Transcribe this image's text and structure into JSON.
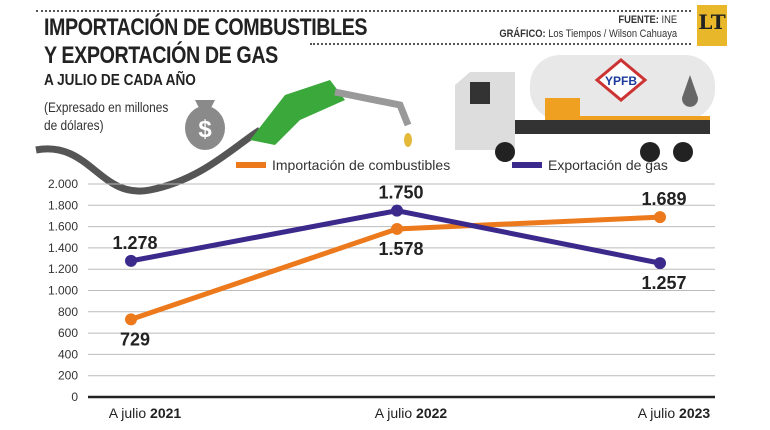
{
  "header": {
    "title_line1": "IMPORTACIÓN DE COMBUSTIBLES",
    "title_line2": "Y EXPORTACIÓN DE GAS",
    "subtitle": "A JULIO DE CADA AÑO",
    "unit_line1": "(Expresado en millones",
    "unit_line2": "de dólares)",
    "source_label": "FUENTE:",
    "source_value": "INE",
    "graphic_label": "GRÁFICO:",
    "graphic_value": "Los Tiempos / Wilson Cahuaya",
    "logo_text": "LT",
    "truck_logo": "YPFB"
  },
  "colors": {
    "import": "#ec7a1c",
    "export": "#3b2a8c",
    "grid": "#bbbbbb"
  },
  "chart_data": {
    "type": "line",
    "title": "Importación de combustibles y exportación de gas",
    "xlabel": "",
    "ylabel": "Millones de dólares",
    "categories": [
      "2021",
      "2022",
      "2023"
    ],
    "category_prefix": "A julio",
    "ylim": [
      0,
      2000
    ],
    "yticks": [
      0,
      200,
      400,
      600,
      800,
      1000,
      1200,
      1400,
      1600,
      1800,
      2000
    ],
    "ytick_labels": [
      "0",
      "200",
      "400",
      "600",
      "800",
      "1.000",
      "1.200",
      "1.400",
      "1.600",
      "1.800",
      "2.000"
    ],
    "grid": true,
    "legend_position": "top",
    "series": [
      {
        "name": "Importación de combustibles",
        "values": [
          729,
          1578,
          1689
        ],
        "labels": [
          "729",
          "1.578",
          "1.689"
        ]
      },
      {
        "name": "Exportación de gas",
        "values": [
          1278,
          1750,
          1257
        ],
        "labels": [
          "1.278",
          "1.750",
          "1.257"
        ]
      }
    ]
  }
}
